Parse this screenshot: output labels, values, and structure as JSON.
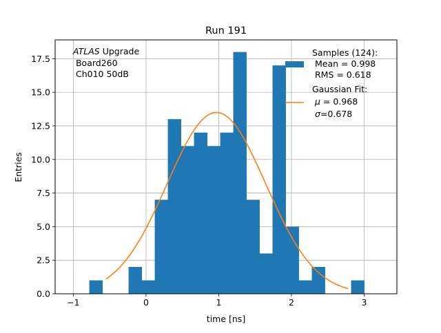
{
  "chart_data": {
    "type": "bar",
    "title": "Run 191",
    "xlabel": "time [ns]",
    "ylabel": "Entries",
    "xlim": [
      -1.25,
      3.45
    ],
    "ylim": [
      0,
      18.9
    ],
    "grid": true,
    "xticks": [
      -1,
      0,
      1,
      2,
      3
    ],
    "xtick_labels": [
      "−1",
      "0",
      "1",
      "2",
      "3"
    ],
    "yticks": [
      0,
      2.5,
      5,
      7.5,
      10,
      12.5,
      15,
      17.5
    ],
    "ytick_labels": [
      "0.0",
      "2.5",
      "5.0",
      "7.5",
      "10.0",
      "12.5",
      "15.0",
      "17.5"
    ],
    "annotation": {
      "italic": "ATLAS",
      "line1_rest": " Upgrade",
      "line2": " Board260",
      "line3": " Ch010 50dB"
    },
    "histogram": {
      "color": "#1f77b4",
      "bin_edges": [
        -0.96,
        -0.78,
        -0.6,
        -0.42,
        -0.24,
        -0.06,
        0.12,
        0.3,
        0.48,
        0.66,
        0.84,
        1.02,
        1.2,
        1.38,
        1.56,
        1.74,
        1.92,
        2.1,
        2.28,
        2.46,
        2.64,
        2.82,
        3.0
      ],
      "counts": [
        0,
        1,
        0,
        0,
        2,
        1,
        7,
        13,
        11,
        12,
        11,
        12,
        18,
        7,
        3,
        17,
        5,
        1,
        2,
        0,
        0,
        1
      ],
      "legend_line1": "Samples (124):",
      "legend_line2": " Mean = 0.998",
      "legend_line3": " RMS = 0.618"
    },
    "fit": {
      "color": "#ff7f0e",
      "amplitude": 13.5,
      "mu": 0.968,
      "sigma": 0.678,
      "x_start": -0.55,
      "x_end": 2.78,
      "legend_line1": "Gaussian Fit:",
      "legend_mu_symbol": "μ",
      "legend_mu_rest": " = 0.968",
      "legend_sigma_symbol": "σ",
      "legend_sigma_rest": "=0.678"
    }
  }
}
